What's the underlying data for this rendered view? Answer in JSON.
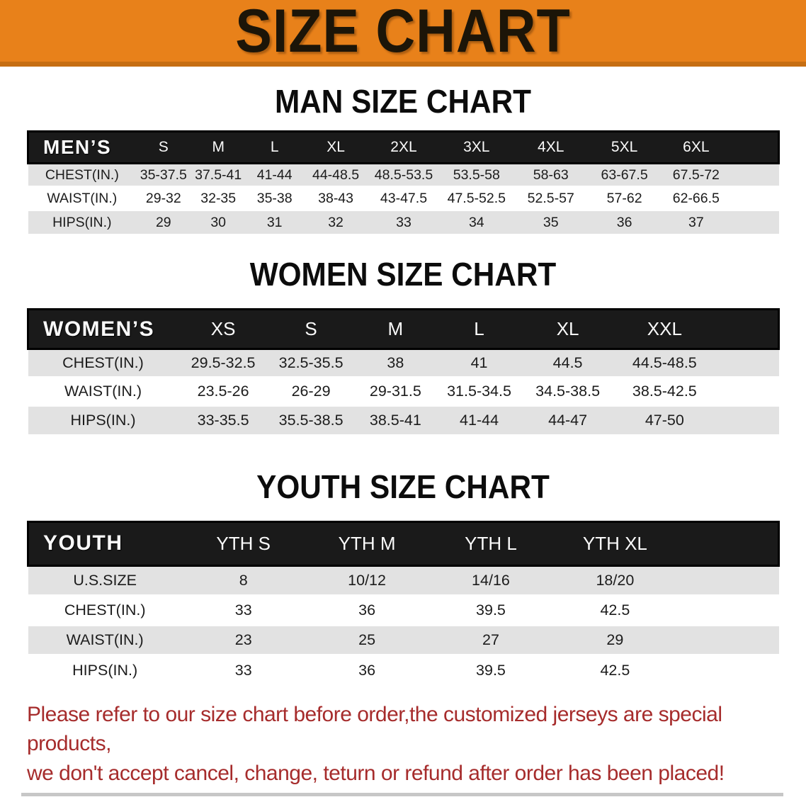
{
  "banner": {
    "title": "SIZE CHART"
  },
  "colors": {
    "banner_bg": "#E8811A",
    "banner_border": "#C66E12",
    "table_header_bg": "#1A1A1A",
    "stripe_gray": "#E2E2E2",
    "disclaimer_red": "#A62C2C"
  },
  "sections": [
    {
      "title": "MAN SIZE CHART",
      "label": "MEN’S",
      "columns": [
        "S",
        "M",
        "L",
        "XL",
        "2XL",
        "3XL",
        "4XL",
        "5XL",
        "6XL"
      ],
      "rows": [
        {
          "label": "CHEST(IN.)",
          "values": [
            "35-37.5",
            "37.5-41",
            "41-44",
            "44-48.5",
            "48.5-53.5",
            "53.5-58",
            "58-63",
            "63-67.5",
            "67.5-72"
          ]
        },
        {
          "label": "WAIST(IN.)",
          "values": [
            "29-32",
            "32-35",
            "35-38",
            "38-43",
            "43-47.5",
            "47.5-52.5",
            "52.5-57",
            "57-62",
            "62-66.5"
          ]
        },
        {
          "label": "HIPS(IN.)",
          "values": [
            "29",
            "30",
            "31",
            "32",
            "33",
            "34",
            "35",
            "36",
            "37"
          ]
        }
      ]
    },
    {
      "title": "WOMEN SIZE CHART",
      "label": "WOMEN’S",
      "columns": [
        "XS",
        "S",
        "M",
        "L",
        "XL",
        "XXL"
      ],
      "rows": [
        {
          "label": "CHEST(IN.)",
          "values": [
            "29.5-32.5",
            "32.5-35.5",
            "38",
            "41",
            "44.5",
            "44.5-48.5"
          ]
        },
        {
          "label": "WAIST(IN.)",
          "values": [
            "23.5-26",
            "26-29",
            "29-31.5",
            "31.5-34.5",
            "34.5-38.5",
            "38.5-42.5"
          ]
        },
        {
          "label": "HIPS(IN.)",
          "values": [
            "33-35.5",
            "35.5-38.5",
            "38.5-41",
            "41-44",
            "44-47",
            "47-50"
          ]
        }
      ]
    },
    {
      "title": "YOUTH SIZE CHART",
      "label": "YOUTH",
      "columns": [
        "YTH S",
        "YTH M",
        "YTH L",
        "YTH XL"
      ],
      "rows": [
        {
          "label": "U.S.SIZE",
          "values": [
            "8",
            "10/12",
            "14/16",
            "18/20"
          ]
        },
        {
          "label": "CHEST(IN.)",
          "values": [
            "33",
            "36",
            "39.5",
            "42.5"
          ]
        },
        {
          "label": "WAIST(IN.)",
          "values": [
            "23",
            "25",
            "27",
            "29"
          ]
        },
        {
          "label": "HIPS(IN.)",
          "values": [
            "33",
            "36",
            "39.5",
            "42.5"
          ]
        }
      ]
    }
  ],
  "disclaimer": {
    "line1": "Please refer to our size chart before order,the customized jerseys are special products,",
    "line2": "we don't accept cancel, change, teturn or refund after order has been placed!"
  }
}
